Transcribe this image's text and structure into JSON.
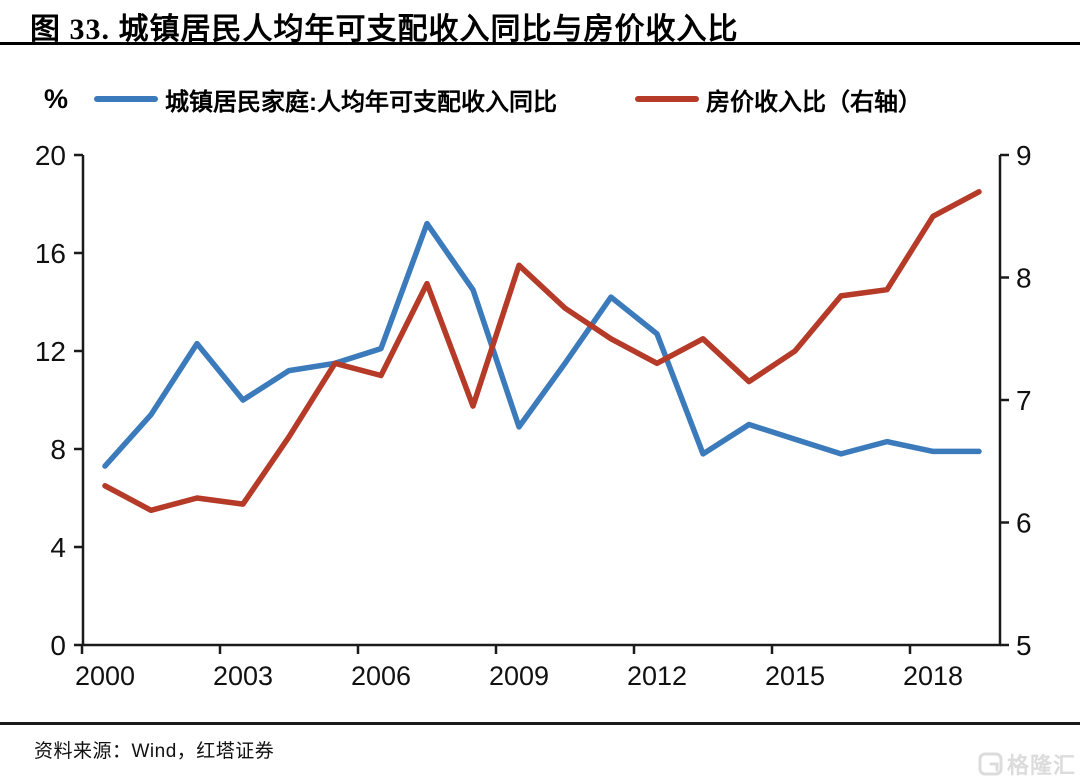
{
  "header": {
    "title": "图 33. 城镇居民人均年可支配收入同比与房价收入比"
  },
  "footer": {
    "source": "资料来源：Wind，红塔证券"
  },
  "watermark": {
    "text": "格隆汇"
  },
  "chart_data": {
    "type": "line",
    "title": "图 33. 城镇居民人均年可支配收入同比与房价收入比",
    "unit_label": "%",
    "grid": false,
    "legend_position": "top",
    "x": [
      2000,
      2001,
      2002,
      2003,
      2004,
      2005,
      2006,
      2007,
      2008,
      2009,
      2010,
      2011,
      2012,
      2013,
      2014,
      2015,
      2016,
      2017,
      2018,
      2019
    ],
    "x_tick_years": [
      2000,
      2003,
      2006,
      2009,
      2012,
      2015,
      2018
    ],
    "x_tick_labels": [
      "2000",
      "2003",
      "2006",
      "2009",
      "2012",
      "2015",
      "2018"
    ],
    "left_axis": {
      "min": 0,
      "max": 20,
      "ticks": [
        0,
        4,
        8,
        12,
        16,
        20
      ]
    },
    "right_axis": {
      "min": 5,
      "max": 9,
      "ticks": [
        5,
        6,
        7,
        8,
        9
      ]
    },
    "series": [
      {
        "name": "城镇居民家庭:人均年可支配收入同比",
        "axis": "left",
        "color": "#3C7BBB",
        "values": [
          7.3,
          9.4,
          12.3,
          10.0,
          11.2,
          11.5,
          12.1,
          17.2,
          14.5,
          8.9,
          11.5,
          14.2,
          12.7,
          7.8,
          9.0,
          8.4,
          7.8,
          8.3,
          7.9,
          7.9
        ]
      },
      {
        "name": "房价收入比（右轴）",
        "axis": "right",
        "color": "#B63A28",
        "values": [
          6.3,
          6.1,
          6.2,
          6.15,
          6.7,
          7.3,
          7.2,
          7.95,
          6.95,
          8.1,
          7.75,
          7.5,
          7.3,
          7.5,
          7.15,
          7.4,
          7.85,
          7.9,
          8.5,
          8.7
        ]
      }
    ]
  }
}
